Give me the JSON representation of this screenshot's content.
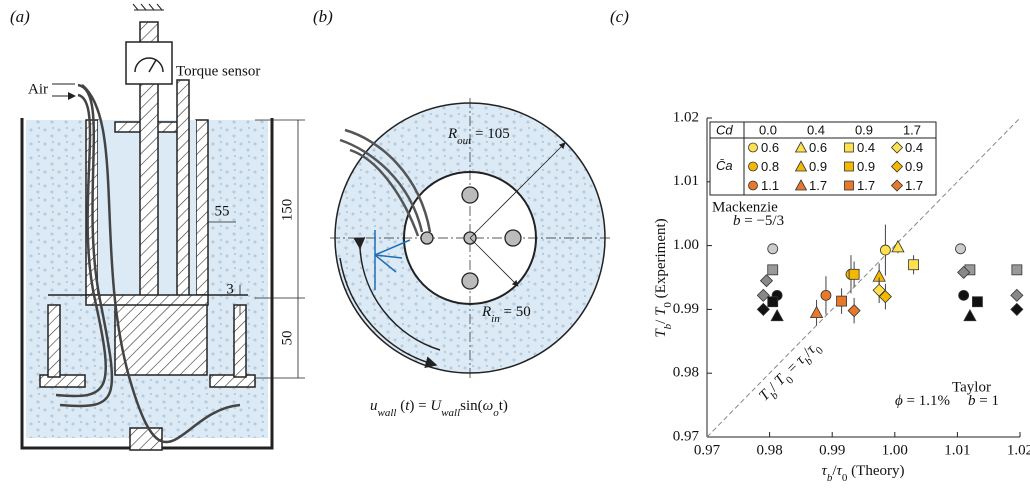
{
  "panel_a": {
    "label": "(a)",
    "torque_sensor": "Torque sensor",
    "air": "Air",
    "dim_gap": "55",
    "dim_height": "150",
    "dim_small": "3",
    "dim_bottom": "50"
  },
  "panel_b": {
    "label": "(b)",
    "r_out": [
      {
        "text": "R",
        "italic": true
      },
      {
        "text": "out",
        "italic": true,
        "sub": true
      },
      {
        "text": " = 105"
      }
    ],
    "r_in": [
      {
        "text": "R",
        "italic": true
      },
      {
        "text": "in",
        "italic": true,
        "sub": true
      },
      {
        "text": " = 50"
      }
    ],
    "wall": [
      {
        "text": "u",
        "italic": true
      },
      {
        "text": "wall",
        "italic": true,
        "sub": true
      },
      {
        "text": " ("
      },
      {
        "text": "t",
        "italic": true
      },
      {
        "text": ") = "
      },
      {
        "text": "U",
        "italic": true
      },
      {
        "text": "wall",
        "italic": true,
        "sub": true
      },
      {
        "text": "sin("
      },
      {
        "text": "ω",
        "italic": true
      },
      {
        "text": "o",
        "italic": true,
        "sub": true
      },
      {
        "text": "t)"
      }
    ]
  },
  "chart_data": {
    "type": "scatter",
    "title": "(c)",
    "xlabel": [
      {
        "text": "τ",
        "italic": true
      },
      {
        "text": "b",
        "italic": true,
        "sub": true
      },
      {
        "text": "/"
      },
      {
        "text": "τ",
        "italic": true
      },
      {
        "text": "0",
        "sub": true
      },
      {
        "text": " (Theory)"
      }
    ],
    "ylabel": [
      {
        "text": "T",
        "italic": true
      },
      {
        "text": "b",
        "italic": true,
        "sub": true
      },
      {
        "text": "/ "
      },
      {
        "text": "T",
        "italic": true
      },
      {
        "text": "0",
        "sub": true
      },
      {
        "text": " (Experiment)"
      }
    ],
    "xlim": [
      0.97,
      1.02
    ],
    "ylim": [
      0.97,
      1.02
    ],
    "xticks": [
      0.97,
      0.98,
      0.99,
      {
        "value": 1,
        "label": "1.00"
      },
      1.01,
      1.02
    ],
    "yticks": [
      0.97,
      0.98,
      0.99,
      {
        "value": 1,
        "label": "1.00"
      },
      1.01,
      1.02
    ],
    "diagonal": true,
    "diagonal_label": [
      {
        "text": "T",
        "italic": true
      },
      {
        "text": "b",
        "italic": true,
        "sub": true
      },
      {
        "text": "/ "
      },
      {
        "text": "T",
        "italic": true
      },
      {
        "text": "0",
        "sub": true
      },
      {
        "text": " = "
      },
      {
        "text": "τ",
        "italic": true
      },
      {
        "text": "b",
        "italic": true,
        "sub": true
      },
      {
        "text": "/"
      },
      {
        "text": "τ",
        "italic": true
      },
      {
        "text": "0",
        "sub": true
      }
    ],
    "phi_label": [
      {
        "text": "ϕ",
        "italic": true
      },
      {
        "text": " = 1.1%"
      }
    ],
    "legend_header": "Cd",
    "legend_row_header": "C̄a",
    "groups": [
      {
        "cd": "0.0",
        "marker": "circle",
        "series": [
          {
            "name": "0.6",
            "color": "#ffe14d",
            "x": [
              0.9985
            ],
            "y": [
              0.9993
            ],
            "yerr": [
              0.004
            ]
          },
          {
            "name": "0.8",
            "color": "#f5b800",
            "x": [
              0.993
            ],
            "y": [
              0.9955
            ],
            "yerr": [
              0.003
            ]
          },
          {
            "name": "1.1",
            "color": "#e8792a",
            "x": [
              0.989
            ],
            "y": [
              0.9922
            ],
            "yerr": [
              0.003
            ]
          }
        ]
      },
      {
        "cd": "0.4",
        "marker": "triangle",
        "series": [
          {
            "name": "0.6",
            "color": "#ffe14d",
            "x": [
              1.0005
            ],
            "y": [
              0.9998
            ],
            "yerr": [
              0.001
            ]
          },
          {
            "name": "0.9",
            "color": "#f5b800",
            "x": [
              0.9975
            ],
            "y": [
              0.9952
            ],
            "yerr": [
              0.002
            ]
          },
          {
            "name": "1.7",
            "color": "#e8792a",
            "x": [
              0.9875
            ],
            "y": [
              0.9895
            ],
            "yerr": [
              0.002
            ]
          }
        ]
      },
      {
        "cd": "0.9",
        "marker": "square",
        "series": [
          {
            "name": "0.4",
            "color": "#ffe14d",
            "x": [
              1.003
            ],
            "y": [
              0.997
            ],
            "yerr": [
              0.0015
            ]
          },
          {
            "name": "0.9",
            "color": "#f5b800",
            "x": [
              0.9935
            ],
            "y": [
              0.9955
            ],
            "yerr": [
              0.002
            ]
          },
          {
            "name": "1.7",
            "color": "#e8792a",
            "x": [
              0.9915
            ],
            "y": [
              0.9913
            ],
            "yerr": [
              0.002
            ]
          }
        ]
      },
      {
        "cd": "1.7",
        "marker": "diamond",
        "series": [
          {
            "name": "0.4",
            "color": "#ffe14d",
            "x": [
              0.9975
            ],
            "y": [
              0.993
            ],
            "yerr": [
              0.002
            ]
          },
          {
            "name": "0.9",
            "color": "#f5b800",
            "x": [
              0.9985
            ],
            "y": [
              0.992
            ],
            "yerr": [
              0.002
            ]
          },
          {
            "name": "1.7",
            "color": "#e8792a",
            "x": [
              0.9935
            ],
            "y": [
              0.9898
            ],
            "yerr": [
              0.002
            ]
          }
        ]
      }
    ],
    "theory": [
      {
        "label": "Mackenzie",
        "b_label": [
          {
            "text": "b",
            "italic": true
          },
          {
            "text": " = −5/3"
          }
        ],
        "series": [
          {
            "marker": "circle",
            "color": "#cccccc",
            "x": [
              0.9805
            ],
            "y": [
              0.9995
            ]
          },
          {
            "marker": "square",
            "color": "#999999",
            "x": [
              0.9805
            ],
            "y": [
              0.9962
            ]
          },
          {
            "marker": "diamond",
            "color": "#888888",
            "x": [
              0.9795,
              0.979
            ],
            "y": [
              0.9945,
              0.9922
            ]
          },
          {
            "marker": "circle",
            "color": "#111111",
            "x": [
              0.9812
            ],
            "y": [
              0.9922
            ]
          },
          {
            "marker": "square",
            "color": "#111111",
            "x": [
              0.9805
            ],
            "y": [
              0.9912
            ]
          },
          {
            "marker": "diamond",
            "color": "#111111",
            "x": [
              0.979
            ],
            "y": [
              0.99
            ]
          },
          {
            "marker": "triangle",
            "color": "#111111",
            "x": [
              0.9812
            ],
            "y": [
              0.989
            ]
          }
        ]
      },
      {
        "label": "Taylor",
        "b_label": [
          {
            "text": "b",
            "italic": true
          },
          {
            "text": " = 1"
          }
        ],
        "series": [
          {
            "marker": "circle",
            "color": "#cccccc",
            "x": [
              1.0105
            ],
            "y": [
              0.9995
            ]
          },
          {
            "marker": "square",
            "color": "#999999",
            "x": [
              1.012,
              1.0195
            ],
            "y": [
              0.9962,
              0.9962
            ]
          },
          {
            "marker": "diamond",
            "color": "#888888",
            "x": [
              1.011,
              1.0195
            ],
            "y": [
              0.9958,
              0.9922
            ]
          },
          {
            "marker": "circle",
            "color": "#111111",
            "x": [
              1.011
            ],
            "y": [
              0.9922
            ]
          },
          {
            "marker": "square",
            "color": "#111111",
            "x": [
              1.0132
            ],
            "y": [
              0.9912
            ]
          },
          {
            "marker": "diamond",
            "color": "#111111",
            "x": [
              1.0195
            ],
            "y": [
              0.99
            ]
          },
          {
            "marker": "triangle",
            "color": "#111111",
            "x": [
              1.012
            ],
            "y": [
              0.989
            ]
          }
        ]
      }
    ]
  }
}
